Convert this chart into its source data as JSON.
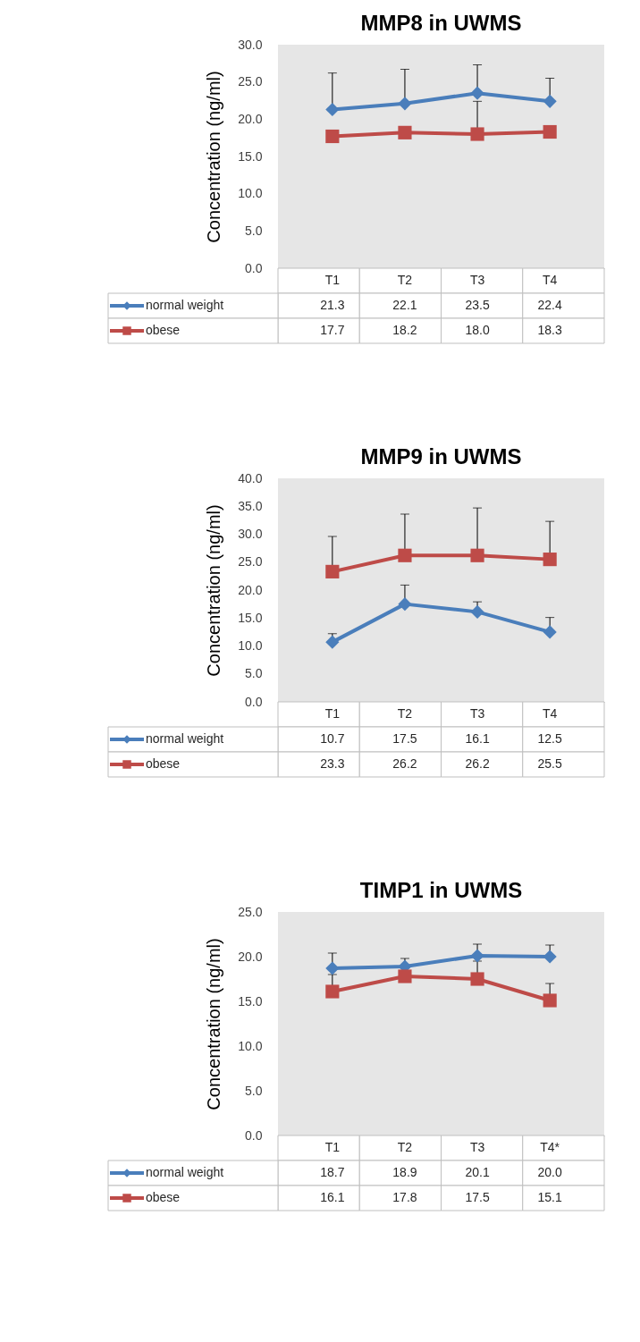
{
  "chart_data": [
    {
      "type": "line",
      "title": "MMP8 in UWMS",
      "ylabel": "Concentration (ng/ml)",
      "categories": [
        "T1",
        "T2",
        "T3",
        "T4"
      ],
      "ylim": [
        0,
        30
      ],
      "yticks": [
        {
          "value": 0,
          "label": "0.0"
        },
        {
          "value": 5,
          "label": "5.0"
        },
        {
          "value": 10,
          "label": "10.0"
        },
        {
          "value": 15,
          "label": "15.0"
        },
        {
          "value": 20,
          "label": "20.0"
        },
        {
          "value": 25,
          "label": "25.0"
        },
        {
          "value": 30,
          "label": "30.0"
        }
      ],
      "grid": false,
      "legend": "bottom",
      "series": [
        {
          "name": "normal weight",
          "color": "#4a7ebb",
          "marker": "diamond",
          "values": [
            21.3,
            22.1,
            23.5,
            22.4
          ],
          "value_labels": [
            "21.3",
            "22.1",
            "23.5",
            "22.4"
          ],
          "errors": [
            [
              21.3,
              26.2
            ],
            [
              22.1,
              26.7
            ],
            [
              23.5,
              27.3
            ],
            [
              22.4,
              25.5
            ]
          ]
        },
        {
          "name": "obese",
          "color": "#be4b48",
          "marker": "square",
          "values": [
            17.7,
            18.2,
            18.0,
            18.3
          ],
          "value_labels": [
            "17.7",
            "18.2",
            "18.0",
            "18.3"
          ],
          "errors": [
            null,
            null,
            [
              18.0,
              22.4
            ],
            null
          ]
        }
      ]
    },
    {
      "type": "line",
      "title": "MMP9 in UWMS",
      "ylabel": "Concentration (ng/ml)",
      "categories": [
        "T1",
        "T2",
        "T3",
        "T4"
      ],
      "ylim": [
        0,
        40
      ],
      "yticks": [
        {
          "value": 0,
          "label": "0.0"
        },
        {
          "value": 5,
          "label": "5.0"
        },
        {
          "value": 10,
          "label": "10.0"
        },
        {
          "value": 15,
          "label": "15.0"
        },
        {
          "value": 20,
          "label": "20.0"
        },
        {
          "value": 25,
          "label": "25.0"
        },
        {
          "value": 30,
          "label": "30.0"
        },
        {
          "value": 35,
          "label": "35.0"
        },
        {
          "value": 40,
          "label": "40.0"
        }
      ],
      "grid": false,
      "legend": "bottom",
      "data_labels": true,
      "series": [
        {
          "name": "normal weight",
          "color": "#4a7ebb",
          "marker": "diamond",
          "values": [
            10.7,
            17.5,
            16.1,
            12.5
          ],
          "errors": [
            [
              10.7,
              12.2
            ],
            [
              17.5,
              20.9
            ],
            [
              16.1,
              17.9
            ],
            [
              12.5,
              15.1
            ]
          ]
        },
        {
          "name": "obese",
          "color": "#be4b48",
          "marker": "square",
          "values": [
            23.3,
            26.2,
            26.2,
            25.5
          ],
          "errors": [
            [
              23.3,
              29.6
            ],
            [
              26.2,
              33.6
            ],
            [
              26.2,
              34.7
            ],
            [
              25.5,
              32.3
            ]
          ]
        }
      ]
    },
    {
      "type": "line",
      "title": "TIMP1 in UWMS",
      "ylabel": "Concentration (ng/ml)",
      "categories": [
        "T1",
        "T2",
        "T3",
        "T4*"
      ],
      "ylim": [
        0,
        25
      ],
      "yticks": [
        {
          "value": 0,
          "label": "0.0"
        },
        {
          "value": 5,
          "label": "5.0"
        },
        {
          "value": 10,
          "label": "10.0"
        },
        {
          "value": 15,
          "label": "15.0"
        },
        {
          "value": 20,
          "label": "20.0"
        },
        {
          "value": 25,
          "label": "25.0"
        }
      ],
      "grid": false,
      "legend": "bottom",
      "series": [
        {
          "name": "normal weight",
          "color": "#4a7ebb",
          "marker": "diamond",
          "values": [
            18.7,
            18.9,
            20.1,
            20.0
          ],
          "value_labels": [
            "18.7",
            "18.9",
            "20.1",
            "20.0"
          ],
          "errors": [
            [
              18.7,
              20.4
            ],
            [
              18.9,
              19.8
            ],
            [
              20.1,
              21.4
            ],
            [
              20.0,
              21.3
            ]
          ]
        },
        {
          "name": "obese",
          "color": "#be4b48",
          "marker": "square",
          "values": [
            16.1,
            17.8,
            17.5,
            15.1
          ],
          "value_labels": [
            "16.1",
            "17.8",
            "17.5",
            "15.1"
          ],
          "errors": [
            [
              16.1,
              18.0
            ],
            null,
            [
              17.5,
              19.5
            ],
            [
              15.1,
              17.0
            ]
          ]
        }
      ]
    }
  ]
}
